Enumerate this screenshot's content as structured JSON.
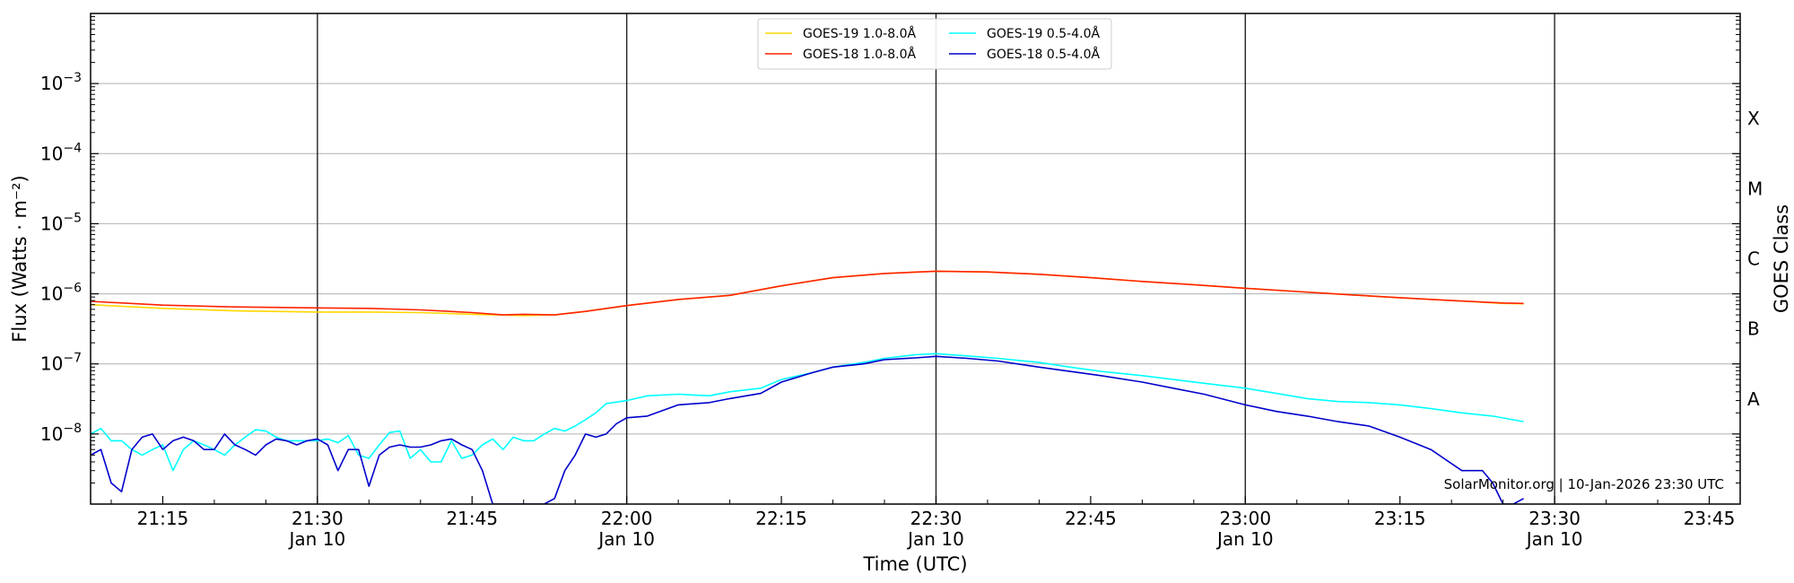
{
  "chart_data": {
    "type": "line",
    "xlabel": "Time (UTC)",
    "ylabel": "Flux (Watts · m⁻²)",
    "y2label": "GOES Class",
    "yscale": "log",
    "ylim": [
      1e-09,
      0.01
    ],
    "xlim": [
      "21:08",
      "23:48"
    ],
    "grid": "horizontal",
    "legend_position": "top-center",
    "x_ticks": [
      {
        "time": "21:15",
        "label": "21:15",
        "sub": ""
      },
      {
        "time": "21:30",
        "label": "21:30",
        "sub": "Jan 10"
      },
      {
        "time": "21:45",
        "label": "21:45",
        "sub": ""
      },
      {
        "time": "22:00",
        "label": "22:00",
        "sub": "Jan 10"
      },
      {
        "time": "22:15",
        "label": "22:15",
        "sub": ""
      },
      {
        "time": "22:30",
        "label": "22:30",
        "sub": "Jan 10"
      },
      {
        "time": "22:45",
        "label": "22:45",
        "sub": ""
      },
      {
        "time": "23:00",
        "label": "23:00",
        "sub": "Jan 10"
      },
      {
        "time": "23:15",
        "label": "23:15",
        "sub": ""
      },
      {
        "time": "23:30",
        "label": "23:30",
        "sub": "Jan 10"
      },
      {
        "time": "23:45",
        "label": "23:45",
        "sub": ""
      }
    ],
    "vlines": [
      "21:30",
      "22:00",
      "22:30",
      "23:00",
      "23:30"
    ],
    "y_ticks": [
      {
        "value": 1e-08,
        "base": "10",
        "exp": "−8"
      },
      {
        "value": 1e-07,
        "base": "10",
        "exp": "−7"
      },
      {
        "value": 1e-06,
        "base": "10",
        "exp": "−6"
      },
      {
        "value": 1e-05,
        "base": "10",
        "exp": "−5"
      },
      {
        "value": 0.0001,
        "base": "10",
        "exp": "−4"
      },
      {
        "value": 0.001,
        "base": "10",
        "exp": "−3"
      }
    ],
    "goes_classes": [
      {
        "label": "A",
        "value": 1e-08
      },
      {
        "label": "B",
        "value": 1e-07
      },
      {
        "label": "C",
        "value": 1e-06
      },
      {
        "label": "M",
        "value": 1e-05
      },
      {
        "label": "X",
        "value": 0.0001
      }
    ],
    "series": [
      {
        "name": "GOES-19 1.0-8.0Å",
        "color": "#ffd700",
        "x": [
          "21:08",
          "21:15",
          "21:22",
          "21:30",
          "21:35",
          "21:40",
          "21:45",
          "21:50",
          "21:53",
          "21:56",
          "22:00",
          "22:05",
          "22:10",
          "22:15",
          "22:20",
          "22:25",
          "22:30",
          "22:35",
          "22:40",
          "22:45",
          "22:50",
          "22:55",
          "23:00",
          "23:05",
          "23:10",
          "23:15",
          "23:20",
          "23:25",
          "23:27"
        ],
        "y": [
          7e-07,
          6.2e-07,
          5.7e-07,
          5.5e-07,
          5.5e-07,
          5.4e-07,
          5.1e-07,
          4.9e-07,
          5e-07,
          5.6e-07,
          6.8e-07,
          8.3e-07,
          9.5e-07,
          1.3e-06,
          1.7e-06,
          1.95e-06,
          2.1e-06,
          2.05e-06,
          1.9e-06,
          1.7e-06,
          1.5e-06,
          1.35e-06,
          1.2e-06,
          1.08e-06,
          9.7e-07,
          8.8e-07,
          8e-07,
          7.3e-07,
          7.2e-07
        ]
      },
      {
        "name": "GOES-18 1.0-8.0Å",
        "color": "#ff2200",
        "x": [
          "21:08",
          "21:15",
          "21:22",
          "21:30",
          "21:35",
          "21:40",
          "21:45",
          "21:48",
          "21:50",
          "21:53",
          "21:56",
          "22:00",
          "22:05",
          "22:10",
          "22:15",
          "22:20",
          "22:25",
          "22:30",
          "22:35",
          "22:40",
          "22:45",
          "22:50",
          "22:55",
          "23:00",
          "23:05",
          "23:10",
          "23:15",
          "23:20",
          "23:25",
          "23:27"
        ],
        "y": [
          7.8e-07,
          6.9e-07,
          6.5e-07,
          6.3e-07,
          6.2e-07,
          5.9e-07,
          5.4e-07,
          5e-07,
          5.1e-07,
          5e-07,
          5.6e-07,
          6.8e-07,
          8.3e-07,
          9.5e-07,
          1.3e-06,
          1.7e-06,
          1.95e-06,
          2.1e-06,
          2.05e-06,
          1.9e-06,
          1.7e-06,
          1.5e-06,
          1.35e-06,
          1.2e-06,
          1.08e-06,
          9.7e-07,
          8.8e-07,
          8e-07,
          7.4e-07,
          7.3e-07
        ]
      },
      {
        "name": "GOES-19 0.5-4.0Å",
        "color": "#00ffff",
        "x": [
          "21:08",
          "21:09",
          "21:10",
          "21:11",
          "21:12",
          "21:13",
          "21:14",
          "21:15",
          "21:16",
          "21:17",
          "21:18",
          "21:19",
          "21:20",
          "21:21",
          "21:22",
          "21:23",
          "21:24",
          "21:25",
          "21:26",
          "21:27",
          "21:28",
          "21:29",
          "21:30",
          "21:31",
          "21:32",
          "21:33",
          "21:34",
          "21:35",
          "21:36",
          "21:37",
          "21:38",
          "21:39",
          "21:40",
          "21:41",
          "21:42",
          "21:43",
          "21:44",
          "21:45",
          "21:46",
          "21:47",
          "21:48",
          "21:49",
          "21:50",
          "21:51",
          "21:52",
          "21:53",
          "21:54",
          "21:55",
          "21:56",
          "21:57",
          "21:58",
          "22:00",
          "22:02",
          "22:05",
          "22:08",
          "22:10",
          "22:13",
          "22:15",
          "22:18",
          "22:20",
          "22:23",
          "22:25",
          "22:28",
          "22:30",
          "22:33",
          "22:36",
          "22:40",
          "22:43",
          "22:46",
          "22:50",
          "22:53",
          "22:56",
          "23:00",
          "23:03",
          "23:06",
          "23:09",
          "23:12",
          "23:15",
          "23:18",
          "23:21",
          "23:24",
          "23:27"
        ],
        "y": [
          1e-08,
          1.2e-08,
          8e-09,
          8e-09,
          6e-09,
          5e-09,
          6e-09,
          7e-09,
          3e-09,
          6e-09,
          8e-09,
          7e-09,
          6e-09,
          5e-09,
          7e-09,
          9e-09,
          1.15e-08,
          1.1e-08,
          9e-09,
          8e-09,
          8e-09,
          8e-09,
          8e-09,
          8.5e-09,
          7.5e-09,
          9.5e-09,
          5e-09,
          4.5e-09,
          7e-09,
          1.05e-08,
          1.1e-08,
          4.5e-09,
          6e-09,
          4e-09,
          4e-09,
          8e-09,
          4.5e-09,
          5e-09,
          7e-09,
          8.5e-09,
          6e-09,
          9e-09,
          8e-09,
          8e-09,
          1e-08,
          1.2e-08,
          1.1e-08,
          1.3e-08,
          1.6e-08,
          2e-08,
          2.7e-08,
          3e-08,
          3.5e-08,
          3.7e-08,
          3.5e-08,
          4e-08,
          4.5e-08,
          6e-08,
          7.5e-08,
          9e-08,
          1.05e-07,
          1.2e-07,
          1.35e-07,
          1.4e-07,
          1.3e-07,
          1.2e-07,
          1.05e-07,
          9e-08,
          7.8e-08,
          6.8e-08,
          6e-08,
          5.3e-08,
          4.5e-08,
          3.8e-08,
          3.2e-08,
          2.9e-08,
          2.8e-08,
          2.6e-08,
          2.3e-08,
          2e-08,
          1.8e-08,
          1.5e-08
        ]
      },
      {
        "name": "GOES-18 0.5-4.0Å",
        "color": "#0000cc",
        "x": [
          "21:08",
          "21:09",
          "21:10",
          "21:11",
          "21:12",
          "21:13",
          "21:14",
          "21:15",
          "21:16",
          "21:17",
          "21:18",
          "21:19",
          "21:20",
          "21:21",
          "21:22",
          "21:23",
          "21:24",
          "21:25",
          "21:26",
          "21:27",
          "21:28",
          "21:29",
          "21:30",
          "21:31",
          "21:32",
          "21:33",
          "21:34",
          "21:35",
          "21:36",
          "21:37",
          "21:38",
          "21:39",
          "21:40",
          "21:41",
          "21:42",
          "21:43",
          "21:44",
          "21:45",
          "21:46",
          "21:47",
          "21:48",
          "21:50",
          "21:52",
          "21:53",
          "21:54",
          "21:55",
          "21:56",
          "21:57",
          "21:58",
          "21:59",
          "22:00",
          "22:02",
          "22:05",
          "22:08",
          "22:10",
          "22:13",
          "22:15",
          "22:18",
          "22:20",
          "22:23",
          "22:25",
          "22:28",
          "22:30",
          "22:33",
          "22:36",
          "22:40",
          "22:43",
          "22:46",
          "22:50",
          "22:53",
          "22:56",
          "23:00",
          "23:03",
          "23:06",
          "23:09",
          "23:12",
          "23:15",
          "23:18",
          "23:21",
          "23:23",
          "23:24",
          "23:25",
          "23:26",
          "23:27"
        ],
        "y": [
          5e-09,
          6e-09,
          2e-09,
          1.5e-09,
          6e-09,
          9e-09,
          1e-08,
          6e-09,
          8e-09,
          9e-09,
          8e-09,
          6e-09,
          6e-09,
          1e-08,
          7e-09,
          6e-09,
          5e-09,
          7e-09,
          8.5e-09,
          8e-09,
          7e-09,
          8e-09,
          8.5e-09,
          7e-09,
          3e-09,
          6e-09,
          6e-09,
          1.8e-09,
          5e-09,
          6.5e-09,
          7e-09,
          6.5e-09,
          6.5e-09,
          7e-09,
          8e-09,
          8.5e-09,
          7e-09,
          6e-09,
          3e-09,
          1e-09,
          1e-09,
          1e-09,
          1e-09,
          1.2e-09,
          3e-09,
          5e-09,
          1e-08,
          9e-09,
          1e-08,
          1.4e-08,
          1.7e-08,
          1.8e-08,
          2.6e-08,
          2.8e-08,
          3.2e-08,
          3.8e-08,
          5.5e-08,
          7.5e-08,
          9e-08,
          1e-07,
          1.15e-07,
          1.22e-07,
          1.28e-07,
          1.2e-07,
          1.1e-07,
          9e-08,
          7.8e-08,
          6.8e-08,
          5.5e-08,
          4.5e-08,
          3.7e-08,
          2.6e-08,
          2.1e-08,
          1.8e-08,
          1.5e-08,
          1.3e-08,
          9e-09,
          6e-09,
          3e-09,
          3e-09,
          2e-09,
          1e-09,
          1e-09,
          1.2e-09
        ]
      }
    ],
    "credit": "SolarMonitor.org | 10-Jan-2026 23:30 UTC"
  }
}
